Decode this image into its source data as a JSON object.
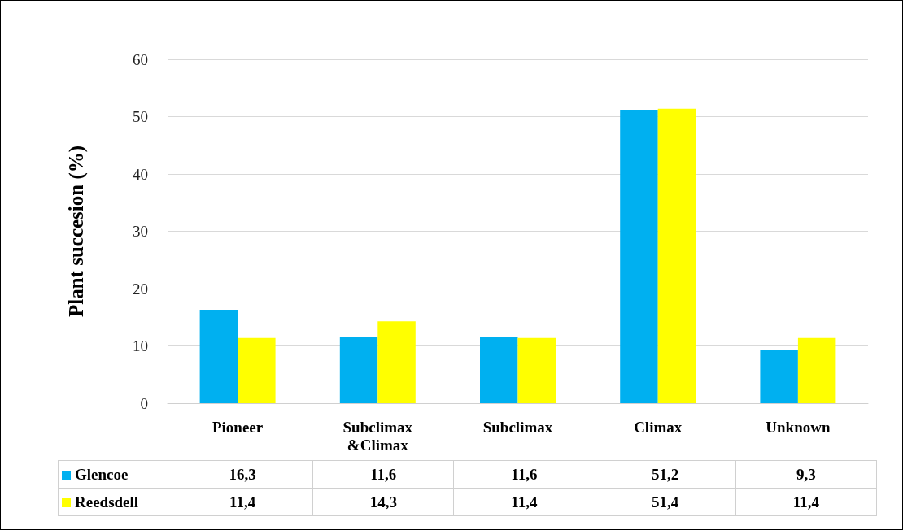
{
  "chart_data": {
    "type": "bar",
    "ylabel": "Plant succesion (%)",
    "categories": [
      "Pioneer",
      "Subclimax\n&Climax",
      "Subclimax",
      "Climax",
      "Unknown"
    ],
    "series": [
      {
        "name": "Glencoe",
        "color": "#00b0f0",
        "values": [
          16.3,
          11.6,
          11.6,
          51.2,
          9.3
        ],
        "value_labels": [
          "16,3",
          "11,6",
          "11,6",
          "51,2",
          "9,3"
        ]
      },
      {
        "name": "Reedsdell",
        "color": "#ffff00",
        "values": [
          11.4,
          14.3,
          11.4,
          51.4,
          11.4
        ],
        "value_labels": [
          "11,4",
          "14,3",
          "11,4",
          "51,4",
          "11,4"
        ]
      }
    ],
    "ylim": [
      0,
      60
    ],
    "yticks": [
      0,
      10,
      20,
      30,
      40,
      50,
      60
    ],
    "grid": "y",
    "legend": "bottom"
  }
}
